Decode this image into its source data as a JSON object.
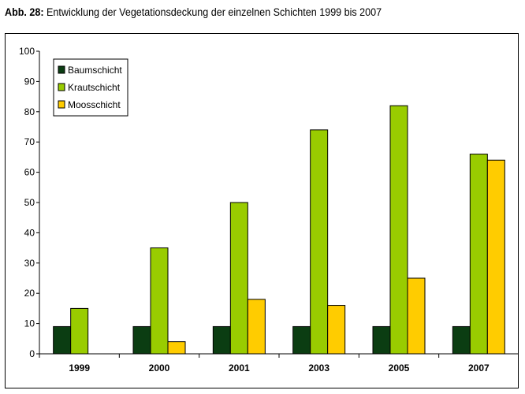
{
  "caption": {
    "label": "Abb. 28:",
    "text": "Entwicklung der Vegetationsdeckung der einzelnen Schichten 1999 bis 2007"
  },
  "chart_data": {
    "type": "bar",
    "categories": [
      "1999",
      "2000",
      "2001",
      "2003",
      "2005",
      "2007"
    ],
    "series": [
      {
        "name": "Baumschicht",
        "color": "#0b3d12",
        "values": [
          9,
          9,
          9,
          9,
          9,
          9
        ]
      },
      {
        "name": "Krautschicht",
        "color": "#99cc00",
        "values": [
          15,
          35,
          50,
          74,
          82,
          66
        ]
      },
      {
        "name": "Moosschicht",
        "color": "#ffcc00",
        "values": [
          0,
          4,
          18,
          16,
          25,
          64
        ]
      }
    ],
    "ylim": [
      0,
      100
    ],
    "yticks": [
      "0",
      "10",
      "20",
      "30",
      "40",
      "50",
      "60",
      "70",
      "80",
      "90",
      "100"
    ],
    "grid": false,
    "legend_position": "top-left"
  }
}
